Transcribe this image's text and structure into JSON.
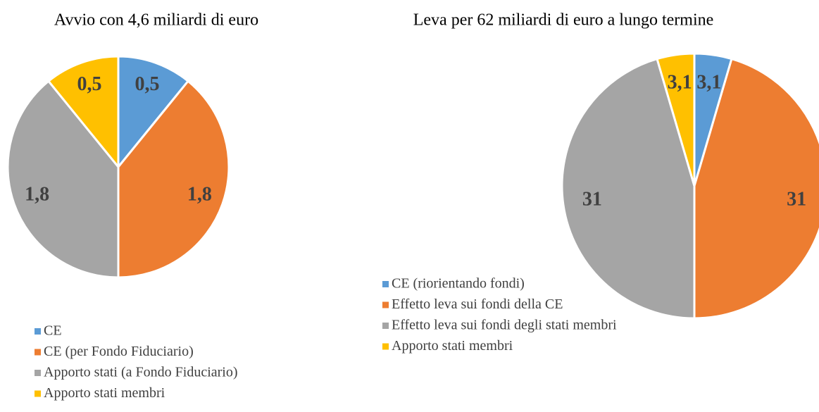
{
  "chart_data": [
    {
      "type": "pie",
      "title": "Avvio con 4,6 miliardi di euro",
      "categories": [
        "CE",
        "CE (per Fondo Fiduciario)",
        "Apporto stati  (a Fondo Fiduciario)",
        "Apporto stati membri"
      ],
      "values": [
        0.5,
        1.8,
        1.8,
        0.5
      ],
      "value_labels": [
        "0,5",
        "1,8",
        "1,8",
        "0,5"
      ],
      "colors": [
        "#5b9bd5",
        "#ed7d31",
        "#a5a5a5",
        "#ffc000"
      ],
      "legend": "bottom"
    },
    {
      "type": "pie",
      "title": "Leva per 62 miliardi di euro a lungo termine",
      "categories": [
        "CE (riorientando fondi)",
        "Effetto leva sui fondi della CE",
        "Effetto leva sui fondi degli stati membri",
        "Apporto stati membri"
      ],
      "values": [
        3.1,
        31,
        31,
        3.1
      ],
      "value_labels": [
        "3,1",
        "31",
        "31",
        "3,1"
      ],
      "colors": [
        "#5b9bd5",
        "#ed7d31",
        "#a5a5a5",
        "#ffc000"
      ],
      "legend": "left"
    }
  ]
}
